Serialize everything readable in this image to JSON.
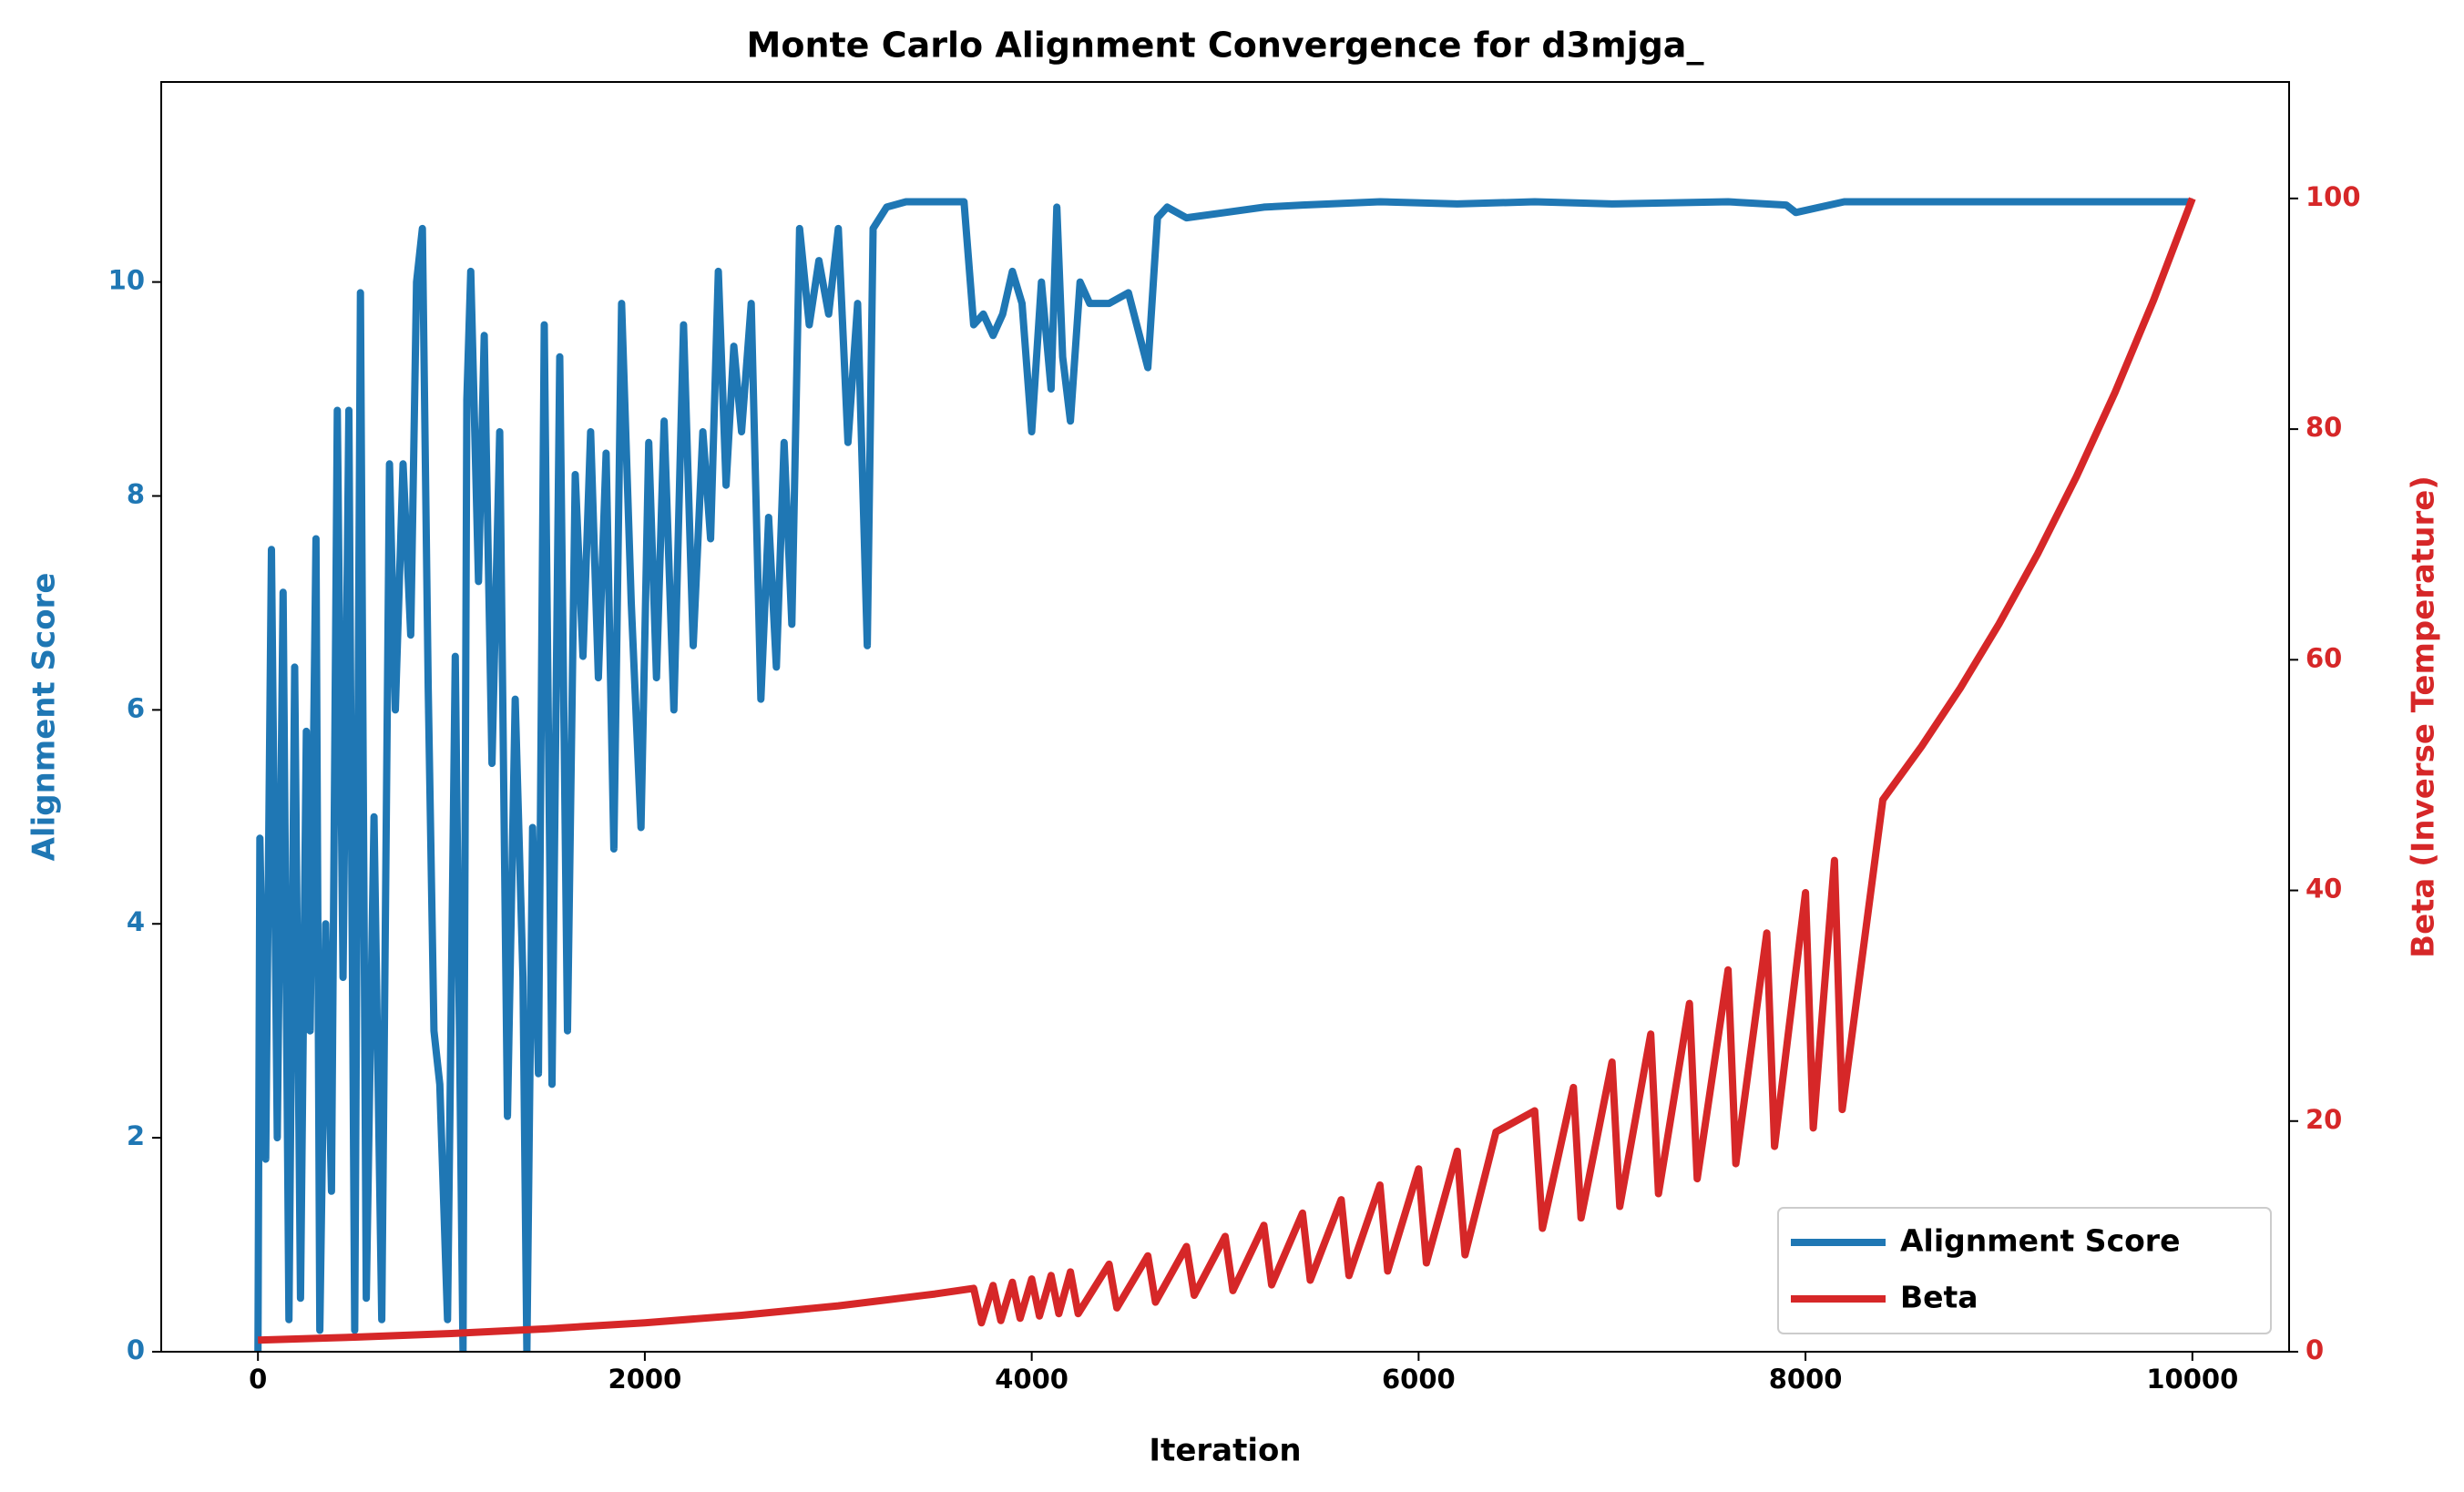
{
  "chart_data": {
    "type": "line",
    "title": "Monte Carlo Alignment Convergence for d3mjga_",
    "x_label": "Iteration",
    "y_label": "Alignment Score",
    "y2_label": "Beta (Inverse Temperature)",
    "xlim": [
      -500,
      10500
    ],
    "xticks": [
      0,
      2000,
      4000,
      6000,
      8000,
      10000
    ],
    "ylim": [
      0,
      11.87
    ],
    "yticks": [
      0,
      2,
      4,
      6,
      8,
      10
    ],
    "y2lim": [
      0,
      110.1
    ],
    "y2ticks": [
      0,
      20,
      40,
      60,
      80,
      100
    ],
    "legend": "lower right",
    "series": [
      {
        "name": "Alignment Score",
        "color": "#1f77b4",
        "axis": "y",
        "x": [
          0,
          10,
          40,
          70,
          100,
          130,
          160,
          190,
          220,
          250,
          270,
          300,
          320,
          350,
          380,
          410,
          440,
          470,
          500,
          530,
          560,
          600,
          640,
          680,
          710,
          750,
          790,
          820,
          850,
          880,
          910,
          940,
          980,
          1020,
          1060,
          1080,
          1100,
          1140,
          1170,
          1210,
          1250,
          1290,
          1330,
          1370,
          1390,
          1420,
          1450,
          1480,
          1520,
          1560,
          1600,
          1640,
          1680,
          1720,
          1760,
          1800,
          1840,
          1880,
          1930,
          1980,
          2020,
          2060,
          2100,
          2150,
          2200,
          2250,
          2300,
          2340,
          2380,
          2420,
          2460,
          2500,
          2550,
          2600,
          2640,
          2680,
          2720,
          2760,
          2800,
          2850,
          2900,
          2950,
          3000,
          3050,
          3100,
          3150,
          3180,
          3250,
          3350,
          3650,
          3700,
          3750,
          3800,
          3850,
          3900,
          3950,
          4000,
          4050,
          4100,
          4130,
          4160,
          4200,
          4250,
          4300,
          4400,
          4500,
          4600,
          4650,
          4700,
          4800,
          5000,
          5200,
          5400,
          5800,
          6200,
          6600,
          7000,
          7600,
          7900,
          7950,
          8200,
          10000
        ],
        "values": [
          0,
          4.8,
          1.8,
          7.5,
          2,
          7.1,
          0.3,
          6.4,
          0.5,
          5.8,
          3,
          7.6,
          0.2,
          4,
          1.5,
          8.8,
          3.5,
          8.8,
          0.2,
          9.9,
          0.5,
          5,
          0.3,
          8.3,
          6,
          8.3,
          6.7,
          10,
          10.5,
          6.2,
          3,
          2.5,
          0.3,
          6.5,
          0,
          8.9,
          10.1,
          7.2,
          9.5,
          5.5,
          8.6,
          2.2,
          6.1,
          3.5,
          0,
          4.9,
          2.6,
          9.6,
          2.5,
          9.3,
          3,
          8.2,
          6.5,
          8.6,
          6.3,
          8.4,
          4.7,
          9.8,
          7,
          4.9,
          8.5,
          6.3,
          8.7,
          6,
          9.6,
          6.6,
          8.6,
          7.6,
          10.1,
          8.1,
          9.4,
          8.6,
          9.8,
          6.1,
          7.8,
          6.4,
          8.5,
          6.8,
          10.5,
          9.6,
          10.2,
          9.7,
          10.5,
          8.5,
          9.8,
          6.6,
          10.5,
          10.7,
          10.75,
          10.75,
          9.6,
          9.7,
          9.5,
          9.7,
          10.1,
          9.8,
          8.6,
          10,
          9,
          10.7,
          9.3,
          8.7,
          10,
          9.8,
          9.8,
          9.9,
          9.2,
          10.6,
          10.7,
          10.6,
          10.65,
          10.7,
          10.72,
          10.75,
          10.73,
          10.75,
          10.73,
          10.75,
          10.72,
          10.65,
          10.75,
          10.75
        ]
      },
      {
        "name": "Beta",
        "color": "#d62728",
        "axis": "y2",
        "x": [
          0,
          500,
          1000,
          1500,
          2000,
          2500,
          3000,
          3500,
          3700,
          3740,
          3800,
          3840,
          3900,
          3940,
          4000,
          4040,
          4100,
          4140,
          4200,
          4240,
          4400,
          4440,
          4600,
          4640,
          4800,
          4840,
          5000,
          5040,
          5200,
          5240,
          5400,
          5440,
          5600,
          5640,
          5800,
          5840,
          6000,
          6040,
          6200,
          6240,
          6400,
          6600,
          6640,
          6800,
          6840,
          7000,
          7040,
          7200,
          7240,
          7400,
          7440,
          7600,
          7640,
          7800,
          7840,
          8000,
          8040,
          8150,
          8190,
          8400,
          8600,
          8800,
          9000,
          9200,
          9400,
          9600,
          9800,
          10000
        ],
        "values": [
          1,
          1.26,
          1.58,
          2,
          2.51,
          3.16,
          3.98,
          5.01,
          5.5,
          2.5,
          5.75,
          2.7,
          6.03,
          2.9,
          6.31,
          3.1,
          6.61,
          3.3,
          6.92,
          3.3,
          7.59,
          3.8,
          8.32,
          4.3,
          9.12,
          4.9,
          10,
          5.3,
          10.96,
          5.8,
          12.02,
          6.2,
          13.18,
          6.6,
          14.45,
          7,
          15.85,
          7.7,
          17.38,
          8.4,
          19.05,
          20.89,
          10.7,
          22.91,
          11.6,
          25.12,
          12.6,
          27.54,
          13.7,
          30.2,
          15,
          33.11,
          16.3,
          36.31,
          17.8,
          39.81,
          19.4,
          42.6,
          21,
          47.86,
          52.48,
          57.54,
          63.1,
          69.18,
          75.86,
          83.18,
          91.2,
          100
        ]
      }
    ]
  }
}
